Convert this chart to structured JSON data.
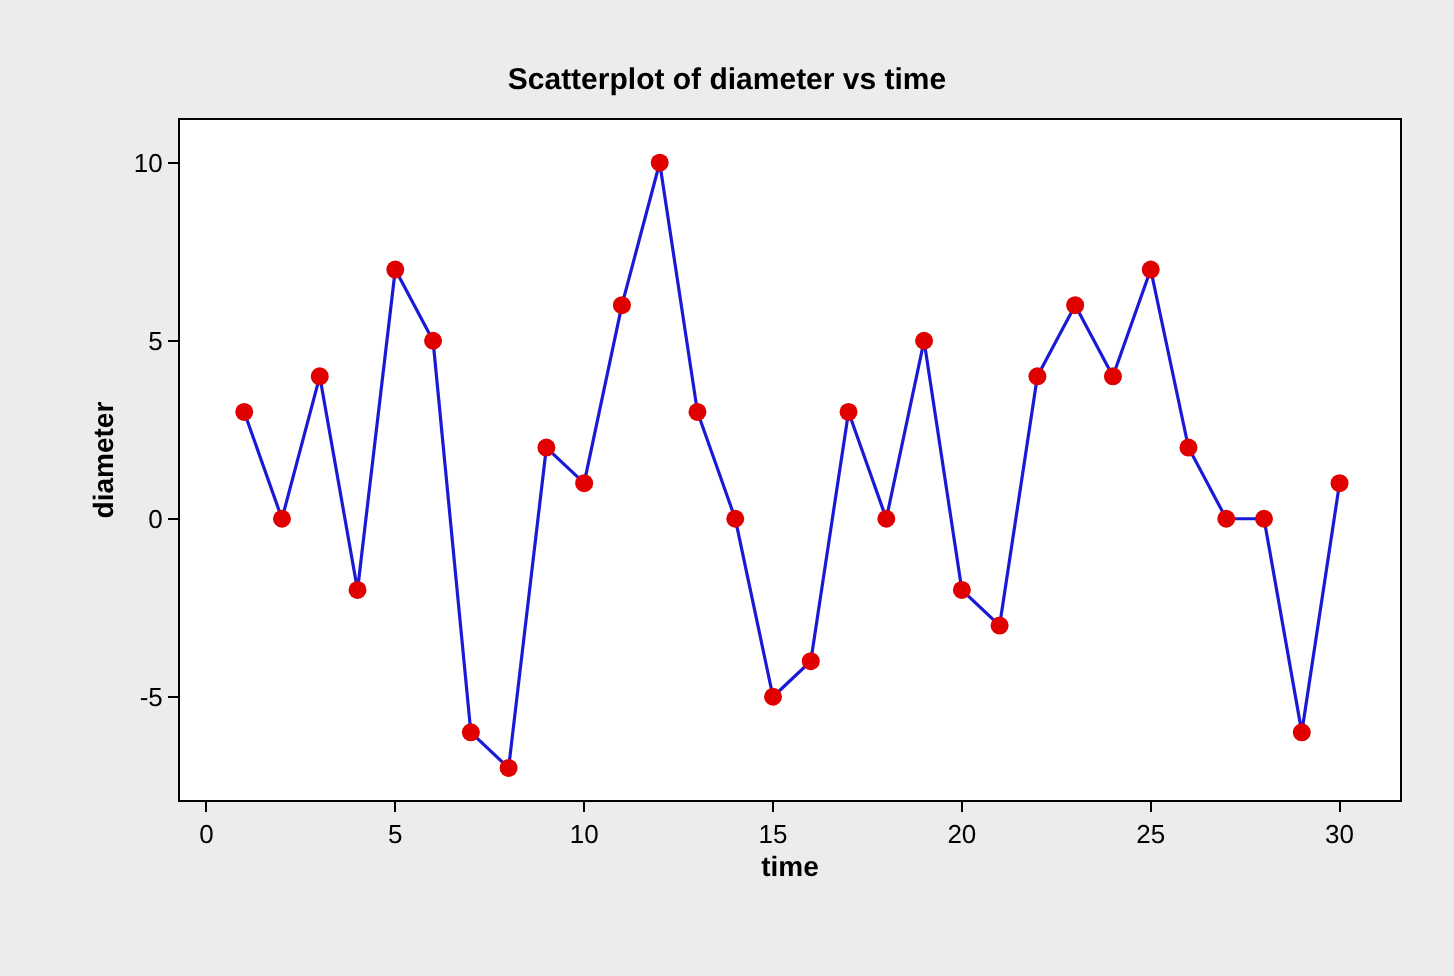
{
  "chart_data": {
    "type": "line",
    "title": "Scatterplot of diameter vs time",
    "xlabel": "time",
    "ylabel": "diameter",
    "x": [
      1,
      2,
      3,
      4,
      5,
      6,
      7,
      8,
      9,
      10,
      11,
      12,
      13,
      14,
      15,
      16,
      17,
      18,
      19,
      20,
      21,
      22,
      23,
      24,
      25,
      26,
      27,
      28,
      29,
      30
    ],
    "series": [
      {
        "color": "#1a1ad6",
        "colors": [
          "#e00000",
          "#e00000",
          "#e00000",
          "#e00000",
          "#e00000",
          "#e00000",
          "#e00000",
          "#e00000",
          "#e00000",
          "#e00000",
          "#e00000",
          "#e00000",
          "#e00000",
          "#e00000",
          "#e00000",
          "#e00000",
          "#e00000",
          "#e00000",
          "#e00000",
          "#e00000",
          "#e00000",
          "#e00000",
          "#e00000",
          "#e00000",
          "#e00000",
          "#e00000",
          "#e00000",
          "#e00000",
          "#e00000",
          "#e00000"
        ],
        "values": [
          3,
          0,
          4,
          -2,
          7,
          5,
          -6,
          -7,
          2,
          1,
          6,
          10,
          3,
          0,
          -5,
          -4,
          3,
          0,
          5,
          -2,
          -3,
          4,
          6,
          4,
          7,
          2,
          0,
          0,
          -6,
          1
        ]
      }
    ],
    "xlim": [
      -0.7,
      31.6
    ],
    "ylim": [
      -7.9,
      11.2
    ],
    "xticks": [
      0,
      5,
      10,
      15,
      20,
      25,
      30
    ],
    "yticks": [
      -5,
      0,
      5,
      10
    ],
    "marker": "circle",
    "line_style": "solid",
    "grid": false,
    "legend": false
  }
}
